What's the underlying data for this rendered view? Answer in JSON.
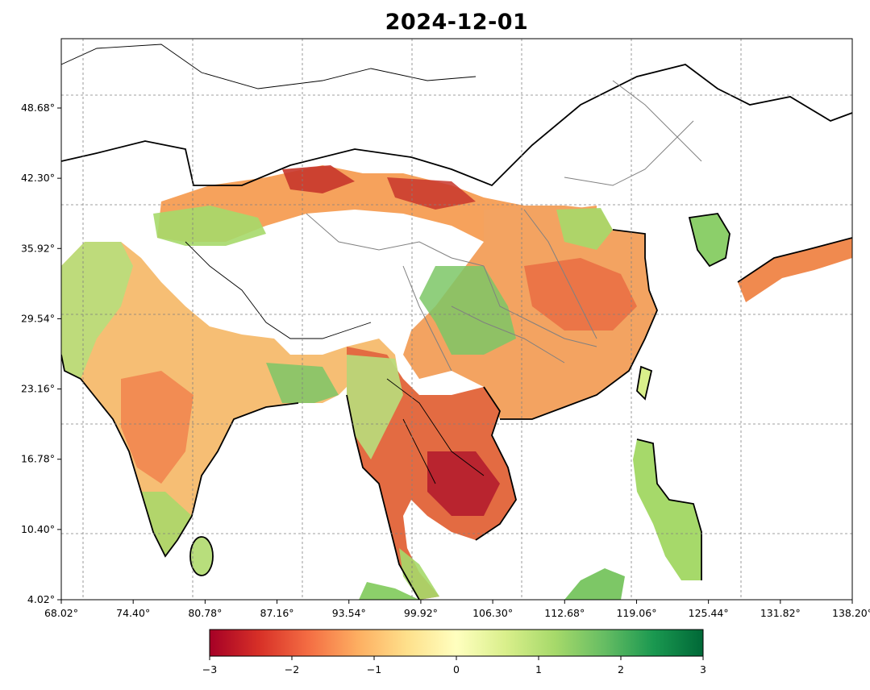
{
  "title": "2024-12-01",
  "map": {
    "x_ticks": [
      "68.02°",
      "74.40°",
      "80.78°",
      "87.16°",
      "93.54°",
      "99.92°",
      "106.30°",
      "112.68°",
      "119.06°",
      "125.44°",
      "131.82°",
      "138.20°"
    ],
    "y_ticks": [
      "48.68°",
      "42.30°",
      "35.92°",
      "29.54°",
      "23.16°",
      "16.78°",
      "10.40°",
      "4.02°"
    ],
    "colorbar": {
      "min": -3,
      "max": 3,
      "tick_labels": [
        "−3",
        "−2",
        "−1",
        "0",
        "1",
        "2",
        "3"
      ],
      "colors": [
        "#a50026",
        "#d73027",
        "#f46d43",
        "#fdae61",
        "#fee08b",
        "#ffffbf",
        "#d9ef8b",
        "#a6d96a",
        "#66bd63",
        "#1a9850",
        "#006837"
      ]
    }
  }
}
